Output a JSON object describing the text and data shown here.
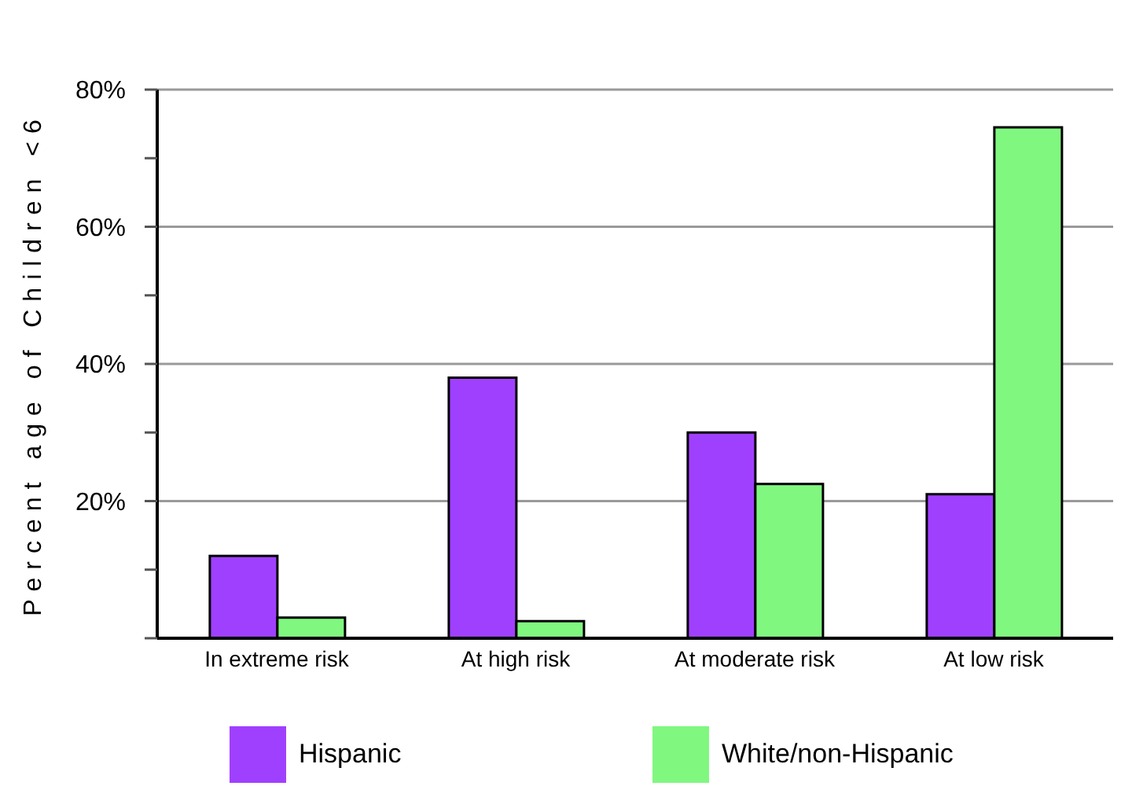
{
  "chart_data": {
    "type": "bar",
    "ylabel": "Percent age of Children <6",
    "categories": [
      "In extreme risk",
      "At high risk",
      "At moderate risk",
      "At low risk"
    ],
    "series": [
      {
        "name": "Hispanic",
        "color": "#a040ff",
        "values": [
          12,
          38,
          30,
          21
        ]
      },
      {
        "name": "White/non-Hispanic",
        "color": "#80f880",
        "values": [
          3,
          2.5,
          22.5,
          74.5
        ]
      }
    ],
    "ylim": [
      0,
      80
    ],
    "yticks": [
      {
        "value": 0,
        "label": null
      },
      {
        "value": 10,
        "label": null
      },
      {
        "value": 20,
        "label": "20%"
      },
      {
        "value": 30,
        "label": null
      },
      {
        "value": 40,
        "label": "40%"
      },
      {
        "value": 50,
        "label": null
      },
      {
        "value": 60,
        "label": "60%"
      },
      {
        "value": 70,
        "label": null
      },
      {
        "value": 80,
        "label": "80%"
      }
    ],
    "grid": "y",
    "legend": "bottom"
  }
}
